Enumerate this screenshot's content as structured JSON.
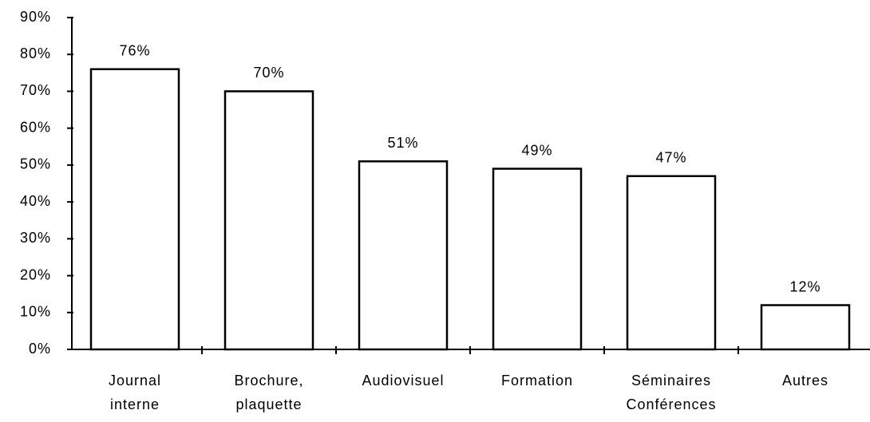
{
  "chart_data": {
    "type": "bar",
    "categories": [
      [
        "Journal",
        "interne"
      ],
      [
        "Brochure,",
        "plaquette"
      ],
      [
        "Audiovisuel"
      ],
      [
        "Formation"
      ],
      [
        "Séminaires",
        "Conférences"
      ],
      [
        "Autres"
      ]
    ],
    "values": [
      76,
      70,
      51,
      49,
      47,
      12
    ],
    "value_labels": [
      "76%",
      "70%",
      "51%",
      "49%",
      "47%",
      "12%"
    ],
    "color": "#ffffff",
    "ylim": [
      0,
      90
    ],
    "yticks": [
      {
        "value": 0,
        "label": "0%"
      },
      {
        "value": 10,
        "label": "10%"
      },
      {
        "value": 20,
        "label": "20%"
      },
      {
        "value": 30,
        "label": "30%"
      },
      {
        "value": 40,
        "label": "40%"
      },
      {
        "value": 50,
        "label": "50%"
      },
      {
        "value": 60,
        "label": "60%"
      },
      {
        "value": 70,
        "label": "70%"
      },
      {
        "value": 80,
        "label": "80%"
      },
      {
        "value": 90,
        "label": "90%"
      }
    ],
    "grid": false
  }
}
